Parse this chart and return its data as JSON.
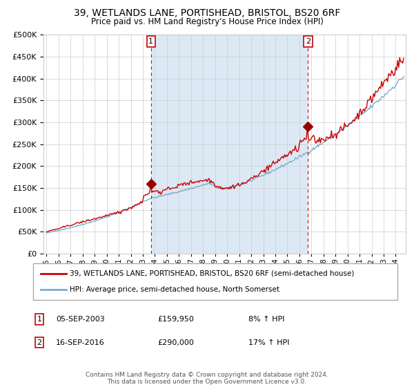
{
  "title": "39, WETLANDS LANE, PORTISHEAD, BRISTOL, BS20 6RF",
  "subtitle": "Price paid vs. HM Land Registry's House Price Index (HPI)",
  "legend_line1": "39, WETLANDS LANE, PORTISHEAD, BRISTOL, BS20 6RF (semi-detached house)",
  "legend_line2": "HPI: Average price, semi-detached house, North Somerset",
  "transaction1_date": "05-SEP-2003",
  "transaction1_price": 159950,
  "transaction1_label": "8% ↑ HPI",
  "transaction2_date": "16-SEP-2016",
  "transaction2_price": 290000,
  "transaction2_label": "17% ↑ HPI",
  "footer": "Contains HM Land Registry data © Crown copyright and database right 2024.\nThis data is licensed under the Open Government Licence v3.0.",
  "red_color": "#cc0000",
  "blue_color": "#7aadcf",
  "bg_shading_color": "#dce9f5",
  "grid_color": "#cccccc",
  "marker_color": "#990000",
  "dashed_color": "#cc0000",
  "annotation_box_color": "#cc0000",
  "ylim": [
    0,
    500000
  ],
  "yticks": [
    0,
    50000,
    100000,
    150000,
    200000,
    250000,
    300000,
    350000,
    400000,
    450000,
    500000
  ]
}
